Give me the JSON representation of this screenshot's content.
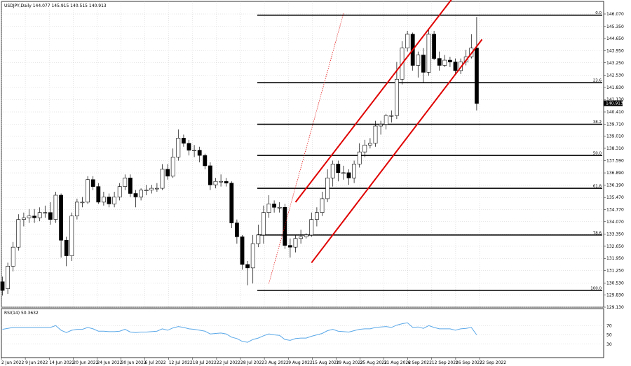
{
  "chart_data": {
    "type": "candlestick",
    "header": "USDJPY,Daily  144.077 145.915 140.515 140.913",
    "price_axis": {
      "ticks": [
        "146.070",
        "145.350",
        "144.650",
        "143.950",
        "143.250",
        "142.530",
        "141.830",
        "141.130",
        "140.410",
        "139.710",
        "139.010",
        "138.310",
        "137.590",
        "136.890",
        "136.190",
        "135.470",
        "134.770",
        "134.070",
        "133.350",
        "132.650",
        "131.950",
        "131.250",
        "130.530",
        "129.830",
        "129.130"
      ],
      "ylim": [
        129.13,
        146.07
      ]
    },
    "current_price": "140.913",
    "date_labels": [
      "2 Jun 2022",
      "9 Jun 2022",
      "14 Jun 2022",
      "20 Jun 2022",
      "24 Jun 2022",
      "30 Jun 2022",
      "6 Jul 2022",
      "12 Jul 2022",
      "18 Jul 2022",
      "22 Jul 2022",
      "28 Jul 2022",
      "3 Aug 2022",
      "9 Aug 2022",
      "15 Aug 2022",
      "19 Aug 2022",
      "25 Aug 2022",
      "31 Aug 2022",
      "6 Sep 2022",
      "12 Sep 2022",
      "16 Sep 2022",
      "22 Sep 2022"
    ],
    "candles": [
      [
        130.6,
        130.1,
        130.9,
        129.8
      ],
      [
        130.2,
        131.5,
        131.7,
        129.9
      ],
      [
        131.5,
        132.6,
        132.9,
        131.2
      ],
      [
        132.6,
        134.2,
        134.5,
        132.4
      ],
      [
        134.2,
        134.3,
        134.6,
        133.8
      ],
      [
        134.3,
        134.4,
        134.8,
        134.0
      ],
      [
        134.4,
        134.3,
        134.8,
        134.0
      ],
      [
        134.3,
        134.6,
        134.9,
        134.1
      ],
      [
        134.6,
        134.6,
        135.0,
        134.3
      ],
      [
        134.6,
        134.2,
        135.2,
        133.9
      ],
      [
        134.2,
        135.6,
        135.8,
        134.0
      ],
      [
        135.6,
        133.0,
        135.7,
        132.0
      ],
      [
        133.0,
        132.1,
        133.2,
        131.5
      ],
      [
        132.1,
        134.4,
        134.6,
        131.8
      ],
      [
        134.4,
        135.2,
        135.4,
        134.2
      ],
      [
        135.2,
        135.2,
        135.5,
        134.9
      ],
      [
        135.2,
        136.5,
        136.7,
        135.1
      ],
      [
        136.5,
        136.1,
        136.7,
        135.9
      ],
      [
        136.1,
        135.2,
        136.3,
        135.1
      ],
      [
        135.2,
        135.5,
        135.8,
        135.0
      ],
      [
        135.5,
        135.1,
        135.7,
        134.9
      ],
      [
        135.1,
        135.5,
        135.8,
        134.9
      ],
      [
        135.5,
        136.1,
        136.3,
        135.3
      ],
      [
        136.1,
        136.6,
        136.8,
        135.9
      ],
      [
        136.6,
        135.7,
        136.8,
        135.5
      ],
      [
        135.7,
        135.5,
        135.9,
        134.9
      ],
      [
        135.5,
        135.9,
        136.0,
        135.3
      ],
      [
        135.9,
        135.9,
        136.2,
        135.6
      ],
      [
        135.9,
        136.0,
        136.2,
        135.7
      ],
      [
        136.0,
        136.0,
        136.3,
        135.8
      ],
      [
        136.0,
        137.1,
        137.4,
        135.9
      ],
      [
        137.1,
        136.7,
        137.4,
        136.5
      ],
      [
        136.7,
        137.8,
        138.3,
        136.6
      ],
      [
        137.8,
        138.9,
        139.4,
        137.6
      ],
      [
        138.9,
        138.6,
        139.1,
        138.4
      ],
      [
        138.6,
        138.2,
        138.8,
        137.9
      ],
      [
        138.2,
        138.2,
        138.5,
        137.8
      ],
      [
        138.2,
        137.9,
        138.4,
        137.5
      ],
      [
        137.9,
        137.3,
        138.0,
        137.1
      ],
      [
        137.3,
        136.2,
        137.5,
        135.9
      ],
      [
        136.2,
        136.4,
        136.6,
        136.0
      ],
      [
        136.4,
        136.4,
        136.8,
        136.1
      ],
      [
        136.4,
        136.3,
        136.6,
        136.1
      ],
      [
        136.3,
        134.0,
        136.4,
        133.7
      ],
      [
        134.0,
        133.2,
        134.2,
        132.8
      ],
      [
        133.2,
        131.6,
        133.3,
        131.3
      ],
      [
        131.6,
        131.4,
        131.8,
        130.4
      ],
      [
        131.4,
        132.8,
        133.3,
        130.5
      ],
      [
        132.8,
        133.3,
        133.9,
        132.6
      ],
      [
        133.3,
        134.6,
        135.0,
        132.8
      ],
      [
        134.6,
        135.1,
        135.6,
        134.3
      ],
      [
        135.1,
        134.9,
        135.3,
        134.6
      ],
      [
        134.9,
        134.9,
        135.2,
        134.6
      ],
      [
        134.9,
        132.7,
        135.1,
        132.5
      ],
      [
        132.7,
        132.6,
        133.1,
        132.0
      ],
      [
        132.6,
        133.1,
        133.3,
        132.3
      ],
      [
        133.1,
        133.2,
        133.6,
        132.8
      ],
      [
        133.2,
        133.3,
        133.4,
        133.1
      ],
      [
        133.3,
        134.2,
        134.6,
        133.2
      ],
      [
        134.2,
        134.6,
        134.9,
        133.8
      ],
      [
        134.6,
        135.4,
        135.8,
        134.4
      ],
      [
        135.4,
        136.6,
        137.1,
        135.2
      ],
      [
        136.6,
        137.4,
        137.6,
        136.1
      ],
      [
        137.4,
        136.9,
        137.6,
        136.4
      ],
      [
        136.9,
        136.9,
        137.3,
        136.5
      ],
      [
        136.9,
        136.6,
        137.1,
        136.2
      ],
      [
        136.6,
        137.4,
        137.6,
        136.3
      ],
      [
        137.4,
        138.1,
        138.6,
        137.2
      ],
      [
        138.1,
        138.5,
        138.8,
        137.8
      ],
      [
        138.5,
        138.6,
        138.9,
        138.3
      ],
      [
        138.6,
        139.6,
        139.9,
        138.4
      ],
      [
        139.6,
        139.7,
        139.9,
        139.1
      ],
      [
        139.7,
        140.2,
        140.3,
        139.4
      ],
      [
        140.2,
        140.2,
        140.5,
        139.8
      ],
      [
        140.2,
        142.3,
        143.3,
        140.0
      ],
      [
        142.3,
        144.1,
        144.5,
        142.0
      ],
      [
        144.1,
        144.9,
        145.1,
        143.9
      ],
      [
        144.9,
        143.1,
        145.0,
        142.8
      ],
      [
        143.1,
        143.7,
        143.9,
        142.4
      ],
      [
        143.7,
        142.7,
        144.1,
        142.1
      ],
      [
        142.7,
        144.9,
        145.2,
        142.5
      ],
      [
        144.9,
        143.5,
        145.1,
        143.4
      ],
      [
        143.5,
        143.1,
        143.9,
        142.8
      ],
      [
        143.1,
        143.4,
        143.7,
        143.0
      ],
      [
        143.4,
        143.3,
        143.6,
        143.0
      ],
      [
        143.3,
        142.8,
        143.5,
        142.6
      ],
      [
        142.8,
        143.3,
        143.5,
        142.6
      ],
      [
        143.3,
        143.6,
        144.0,
        143.1
      ],
      [
        143.6,
        144.1,
        144.9,
        143.5
      ],
      [
        144.1,
        140.9,
        145.9,
        140.5
      ]
    ],
    "channel_lines": [
      {
        "name": "",
        "from": [
          55,
          135.2
        ],
        "to": [
          85,
          147.2
        ]
      },
      {
        "name": "",
        "from": [
          58,
          131.7
        ],
        "to": [
          90,
          144.6
        ]
      }
    ],
    "dotted_line": {
      "from": [
        50,
        130.5
      ],
      "to": [
        64,
        146.1
      ]
    },
    "fib_levels": [
      {
        "label": "0.0",
        "price": 146.0
      },
      {
        "label": "23.6",
        "price": 142.1
      },
      {
        "label": "38.2",
        "price": 139.7
      },
      {
        "label": "50.0",
        "price": 137.9
      },
      {
        "label": "61.8",
        "price": 136.0
      },
      {
        "label": "78.6",
        "price": 133.3
      },
      {
        "label": "100.0",
        "price": 130.1
      }
    ],
    "rsi": {
      "label": "RSI(14) 50.3632",
      "levels": [
        "70",
        "50",
        "30"
      ],
      "values": [
        62,
        64,
        66,
        66,
        66,
        66,
        66,
        66,
        66,
        66,
        70,
        60,
        55,
        60,
        62,
        62,
        66,
        63,
        58,
        58,
        57,
        57,
        58,
        62,
        56,
        55,
        56,
        56,
        57,
        58,
        63,
        60,
        65,
        68,
        66,
        63,
        62,
        60,
        58,
        52,
        53,
        54,
        52,
        45,
        42,
        36,
        34,
        40,
        43,
        48,
        52,
        50,
        49,
        40,
        38,
        42,
        43,
        43,
        47,
        50,
        53,
        59,
        62,
        58,
        57,
        56,
        59,
        62,
        63,
        63,
        66,
        67,
        68,
        66,
        71,
        74,
        76,
        66,
        67,
        64,
        70,
        66,
        63,
        63,
        63,
        60,
        63,
        64,
        66,
        50
      ]
    },
    "colors": {
      "up": "#ffffff",
      "down": "#000000",
      "channel": "#e00000",
      "fib": "#000000",
      "rsi": "#5aa8e8",
      "grid": "#bfbfbf"
    }
  }
}
